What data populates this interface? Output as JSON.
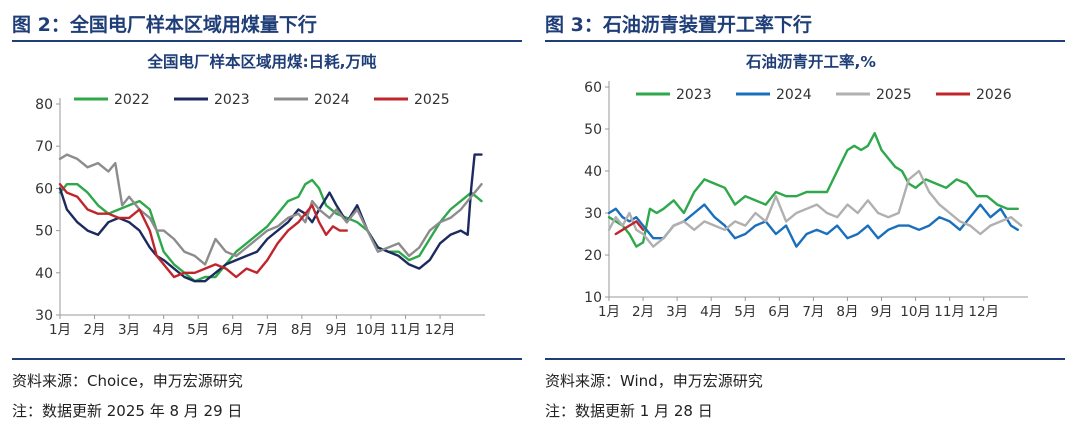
{
  "left": {
    "figure_title": "图 2：全国电厂样本区域用煤量下行",
    "source": "资料来源：Choice，申万宏源研究",
    "note": "注：数据更新 2025 年 8 月 29 日"
  },
  "right": {
    "figure_title": "图 3：石油沥青装置开工率下行",
    "source": "资料来源：Wind，申万宏源研究",
    "note": "注：数据更新 1 月 28 日"
  },
  "chart_data": [
    {
      "type": "line",
      "title": "全国电厂样本区域用煤:日耗,万吨",
      "ylim": [
        30,
        80
      ],
      "yticks": [
        30,
        40,
        50,
        60,
        70,
        80
      ],
      "xlim": [
        1,
        13.3
      ],
      "xticks": [
        1,
        2,
        3,
        4,
        5,
        6,
        7,
        8,
        9,
        10,
        11,
        12
      ],
      "xtick_labels": [
        "1月",
        "2月",
        "3月",
        "4月",
        "5月",
        "6月",
        "7月",
        "8月",
        "9月",
        "10月",
        "11月",
        "12月"
      ],
      "legend_position": "top",
      "series": [
        {
          "name": "2022",
          "color": "#2ea84a",
          "x": [
            1,
            1.2,
            1.5,
            1.8,
            2.1,
            2.4,
            2.7,
            3.0,
            3.3,
            3.6,
            3.8,
            4.0,
            4.3,
            4.6,
            4.9,
            5.2,
            5.5,
            5.8,
            6.1,
            6.4,
            6.7,
            7.0,
            7.3,
            7.6,
            7.9,
            8.1,
            8.3,
            8.5,
            8.7,
            9.0,
            9.3,
            9.6,
            9.9,
            10.2,
            10.5,
            10.8,
            11.1,
            11.4,
            11.7,
            12.0,
            12.3,
            12.6,
            12.9,
            13.2
          ],
          "y": [
            59,
            61,
            61,
            59,
            56,
            54,
            55,
            56,
            57,
            55,
            50,
            45,
            42,
            40,
            38,
            39,
            39,
            42,
            45,
            47,
            49,
            51,
            54,
            57,
            58,
            61,
            62,
            60,
            56,
            54,
            53,
            52,
            50,
            46,
            45,
            45,
            43,
            44,
            48,
            52,
            55,
            57,
            59,
            57
          ]
        },
        {
          "name": "2023",
          "color": "#1c2b5e",
          "x": [
            1,
            1.2,
            1.5,
            1.8,
            2.1,
            2.4,
            2.7,
            3.0,
            3.3,
            3.6,
            3.8,
            4.0,
            4.3,
            4.6,
            4.9,
            5.2,
            5.5,
            5.8,
            6.1,
            6.4,
            6.7,
            7.0,
            7.3,
            7.6,
            7.9,
            8.1,
            8.3,
            8.5,
            8.8,
            9.0,
            9.3,
            9.6,
            9.9,
            10.2,
            10.5,
            10.8,
            11.1,
            11.4,
            11.7,
            12.0,
            12.3,
            12.6,
            12.8,
            12.9,
            13.0,
            13.2
          ],
          "y": [
            60,
            55,
            52,
            50,
            49,
            52,
            53,
            52,
            50,
            46,
            44,
            43,
            41,
            39,
            38,
            38,
            40,
            42,
            43,
            44,
            45,
            48,
            50,
            52,
            55,
            54,
            52,
            55,
            59,
            56,
            52,
            56,
            50,
            46,
            45,
            44,
            42,
            41,
            43,
            47,
            49,
            50,
            49,
            60,
            68,
            68
          ]
        },
        {
          "name": "2024",
          "color": "#8c8c8c",
          "x": [
            1,
            1.2,
            1.5,
            1.8,
            2.1,
            2.4,
            2.6,
            2.8,
            3.0,
            3.3,
            3.6,
            3.8,
            4.0,
            4.3,
            4.6,
            4.9,
            5.2,
            5.5,
            5.8,
            6.1,
            6.4,
            6.7,
            7.0,
            7.3,
            7.6,
            7.9,
            8.1,
            8.3,
            8.5,
            8.8,
            9.0,
            9.3,
            9.6,
            9.9,
            10.2,
            10.5,
            10.8,
            11.1,
            11.4,
            11.7,
            12.0,
            12.3,
            12.6,
            12.9,
            13.2
          ],
          "y": [
            67,
            68,
            67,
            65,
            66,
            64,
            66,
            56,
            58,
            55,
            53,
            50,
            50,
            48,
            45,
            44,
            42,
            48,
            45,
            44,
            46,
            48,
            50,
            51,
            53,
            54,
            52,
            57,
            55,
            53,
            55,
            52,
            55,
            50,
            45,
            46,
            47,
            44,
            46,
            50,
            52,
            53,
            55,
            58,
            61
          ]
        },
        {
          "name": "2025",
          "color": "#c0252b",
          "x": [
            1,
            1.2,
            1.5,
            1.8,
            2.1,
            2.4,
            2.7,
            3.0,
            3.3,
            3.6,
            3.8,
            4.0,
            4.3,
            4.6,
            4.9,
            5.2,
            5.5,
            5.8,
            6.1,
            6.4,
            6.7,
            7.0,
            7.3,
            7.6,
            7.9,
            8.1,
            8.3,
            8.5,
            8.7,
            8.9,
            9.1,
            9.3
          ],
          "y": [
            61,
            59,
            58,
            55,
            54,
            54,
            53,
            53,
            55,
            50,
            44,
            42,
            39,
            40,
            40,
            41,
            42,
            41,
            39,
            41,
            40,
            43,
            47,
            50,
            52,
            54,
            56,
            52,
            49,
            51,
            50,
            50
          ]
        }
      ]
    },
    {
      "type": "line",
      "title": "石油沥青开工率,%",
      "ylim": [
        10,
        60
      ],
      "yticks": [
        10,
        20,
        30,
        40,
        50,
        60
      ],
      "xlim": [
        1,
        13.3
      ],
      "xticks": [
        1,
        2,
        3,
        4,
        5,
        6,
        7,
        8,
        9,
        10,
        11,
        12
      ],
      "xtick_labels": [
        "1月",
        "2月",
        "3月",
        "4月",
        "5月",
        "6月",
        "7月",
        "8月",
        "9月",
        "10月",
        "11月",
        "12月"
      ],
      "legend_position": "top",
      "series": [
        {
          "name": "2023",
          "color": "#2ea84a",
          "x": [
            1,
            1.2,
            1.4,
            1.6,
            1.8,
            2.0,
            2.2,
            2.4,
            2.6,
            2.9,
            3.2,
            3.5,
            3.8,
            4.1,
            4.4,
            4.7,
            5.0,
            5.3,
            5.6,
            5.9,
            6.2,
            6.5,
            6.8,
            7.1,
            7.4,
            7.7,
            8.0,
            8.2,
            8.4,
            8.6,
            8.8,
            9.0,
            9.2,
            9.4,
            9.6,
            9.8,
            10.0,
            10.3,
            10.6,
            10.9,
            11.2,
            11.5,
            11.8,
            12.1,
            12.4,
            12.7,
            13.0
          ],
          "y": [
            29,
            28,
            27,
            25,
            22,
            23,
            31,
            30,
            31,
            33,
            30,
            35,
            38,
            37,
            36,
            32,
            34,
            33,
            32,
            35,
            34,
            34,
            35,
            35,
            35,
            40,
            45,
            46,
            45,
            46,
            49,
            45,
            43,
            41,
            40,
            37,
            36,
            38,
            37,
            36,
            38,
            37,
            34,
            34,
            32,
            31,
            31
          ]
        },
        {
          "name": "2024",
          "color": "#1a6fbd",
          "x": [
            1,
            1.2,
            1.4,
            1.6,
            1.8,
            2.0,
            2.3,
            2.6,
            2.9,
            3.2,
            3.5,
            3.8,
            4.1,
            4.4,
            4.7,
            5.0,
            5.3,
            5.6,
            5.9,
            6.2,
            6.5,
            6.8,
            7.1,
            7.4,
            7.7,
            8.0,
            8.3,
            8.6,
            8.9,
            9.2,
            9.5,
            9.8,
            10.1,
            10.4,
            10.7,
            11.0,
            11.3,
            11.6,
            11.9,
            12.2,
            12.5,
            12.8,
            13.0
          ],
          "y": [
            30,
            31,
            29,
            28,
            29,
            27,
            24,
            24,
            27,
            28,
            30,
            32,
            29,
            27,
            24,
            25,
            27,
            28,
            25,
            27,
            22,
            25,
            26,
            25,
            27,
            24,
            25,
            27,
            24,
            26,
            27,
            27,
            26,
            27,
            29,
            28,
            26,
            29,
            32,
            29,
            31,
            27,
            26
          ]
        },
        {
          "name": "2025",
          "color": "#b0b0b0",
          "x": [
            1,
            1.2,
            1.4,
            1.6,
            1.8,
            2.0,
            2.3,
            2.6,
            2.9,
            3.2,
            3.5,
            3.8,
            4.1,
            4.4,
            4.7,
            5.0,
            5.3,
            5.6,
            5.9,
            6.2,
            6.5,
            6.8,
            7.1,
            7.4,
            7.7,
            8.0,
            8.3,
            8.6,
            8.9,
            9.2,
            9.5,
            9.8,
            10.1,
            10.4,
            10.7,
            11.0,
            11.3,
            11.6,
            11.9,
            12.2,
            12.5,
            12.8,
            13.1
          ],
          "y": [
            26,
            29,
            27,
            30,
            26,
            25,
            22,
            24,
            27,
            28,
            26,
            28,
            27,
            26,
            28,
            27,
            30,
            28,
            34,
            28,
            30,
            31,
            32,
            30,
            29,
            32,
            30,
            33,
            30,
            29,
            30,
            38,
            40,
            35,
            32,
            30,
            28,
            27,
            25,
            27,
            28,
            29,
            27
          ]
        },
        {
          "name": "2026",
          "color": "#c0252b",
          "x": [
            1.2,
            1.4,
            1.6,
            1.8,
            2.0
          ],
          "y": [
            25,
            26,
            27,
            28,
            26
          ]
        }
      ]
    }
  ]
}
